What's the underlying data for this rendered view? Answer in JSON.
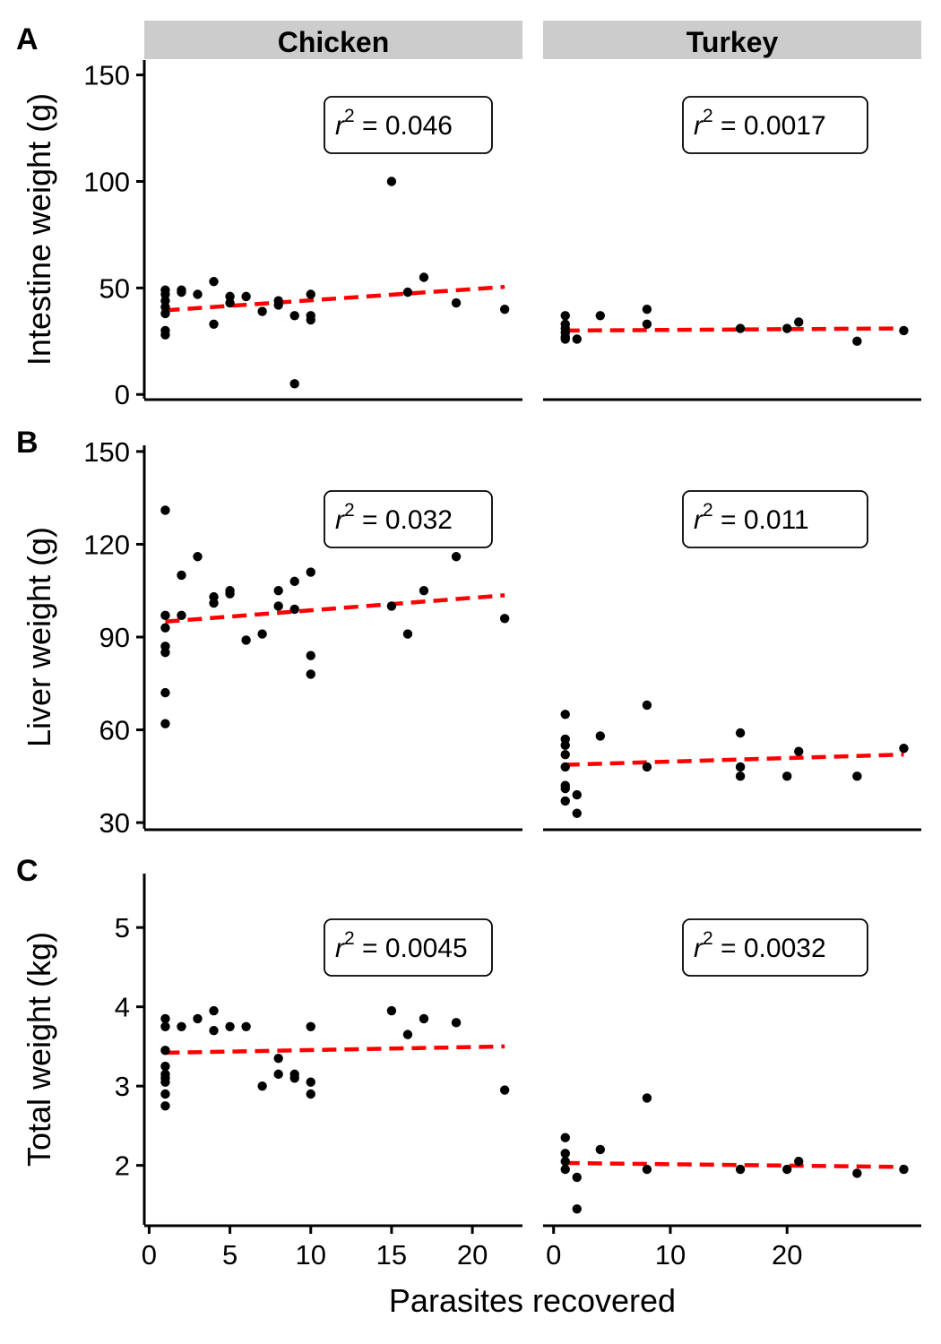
{
  "chart_data": {
    "type": "scatter",
    "xlabel": "Parasites recovered",
    "facets": [
      "Chicken",
      "Turkey"
    ],
    "x_ticks": {
      "Chicken": [
        0,
        5,
        10,
        15,
        20
      ],
      "Turkey": [
        0,
        10,
        20
      ]
    },
    "x_range": {
      "Chicken": [
        -0.3,
        23.1
      ],
      "Turkey": [
        -0.9,
        31.5
      ]
    },
    "fit_line_color": "#ff0000",
    "point_color": "#000000",
    "rows": [
      {
        "letter": "A",
        "ylabel": "Intestine weight (g)",
        "ylim": [
          -2,
          157
        ],
        "yticks": [
          0,
          50,
          100,
          150
        ],
        "panels": [
          {
            "facet": "Chicken",
            "r2_prefix": "r",
            "r2_exp": "2",
            "r2_value": " = 0.046",
            "fit": {
              "x": [
                1,
                22
              ],
              "y": [
                39.5,
                50.5
              ]
            },
            "points": [
              [
                1,
                49
              ],
              [
                1,
                47
              ],
              [
                1,
                44
              ],
              [
                1,
                41
              ],
              [
                1,
                38
              ],
              [
                1,
                30
              ],
              [
                1,
                28
              ],
              [
                2,
                49
              ],
              [
                2,
                48
              ],
              [
                3,
                47
              ],
              [
                4,
                53
              ],
              [
                4,
                33
              ],
              [
                5,
                46
              ],
              [
                5,
                43
              ],
              [
                6,
                46
              ],
              [
                7,
                39
              ],
              [
                8,
                44
              ],
              [
                8,
                42
              ],
              [
                9,
                37
              ],
              [
                9,
                5
              ],
              [
                10,
                47
              ],
              [
                10,
                37
              ],
              [
                10,
                35
              ],
              [
                15,
                100
              ],
              [
                16,
                48
              ],
              [
                17,
                55
              ],
              [
                19,
                43
              ],
              [
                22,
                40
              ]
            ]
          },
          {
            "facet": "Turkey",
            "r2_prefix": "r",
            "r2_exp": "2",
            "r2_value": " = 0.0017",
            "fit": {
              "x": [
                1,
                30
              ],
              "y": [
                30,
                31
              ]
            },
            "points": [
              [
                1,
                37
              ],
              [
                1,
                33
              ],
              [
                1,
                31
              ],
              [
                1,
                29
              ],
              [
                1,
                27
              ],
              [
                1,
                26
              ],
              [
                2,
                26
              ],
              [
                4,
                37
              ],
              [
                8,
                40
              ],
              [
                8,
                33
              ],
              [
                16,
                31
              ],
              [
                20,
                31
              ],
              [
                21,
                34
              ],
              [
                26,
                25
              ],
              [
                30,
                30
              ]
            ]
          }
        ]
      },
      {
        "letter": "B",
        "ylabel": "Liver weight (g)",
        "ylim": [
          28,
          152
        ],
        "yticks": [
          30,
          60,
          90,
          120,
          150
        ],
        "panels": [
          {
            "facet": "Chicken",
            "r2_prefix": "r",
            "r2_exp": "2",
            "r2_value": " = 0.032",
            "fit": {
              "x": [
                1,
                22
              ],
              "y": [
                95,
                103.5
              ]
            },
            "points": [
              [
                1,
                131
              ],
              [
                1,
                97
              ],
              [
                1,
                93
              ],
              [
                1,
                87
              ],
              [
                1,
                85
              ],
              [
                1,
                72
              ],
              [
                1,
                62
              ],
              [
                2,
                110
              ],
              [
                2,
                97
              ],
              [
                3,
                116
              ],
              [
                4,
                103
              ],
              [
                4,
                101
              ],
              [
                5,
                105
              ],
              [
                5,
                104
              ],
              [
                6,
                89
              ],
              [
                7,
                91
              ],
              [
                8,
                105
              ],
              [
                8,
                100
              ],
              [
                9,
                108
              ],
              [
                9,
                99
              ],
              [
                10,
                111
              ],
              [
                10,
                84
              ],
              [
                10,
                78
              ],
              [
                15,
                100
              ],
              [
                16,
                91
              ],
              [
                17,
                105
              ],
              [
                19,
                116
              ],
              [
                22,
                96
              ]
            ]
          },
          {
            "facet": "Turkey",
            "r2_prefix": "r",
            "r2_exp": "2",
            "r2_value": " = 0.011",
            "fit": {
              "x": [
                1,
                30
              ],
              "y": [
                48.7,
                52
              ]
            },
            "points": [
              [
                1,
                65
              ],
              [
                1,
                57
              ],
              [
                1,
                55
              ],
              [
                1,
                52
              ],
              [
                1,
                48
              ],
              [
                1,
                42
              ],
              [
                1,
                41
              ],
              [
                1,
                37
              ],
              [
                2,
                39
              ],
              [
                2,
                33
              ],
              [
                4,
                58
              ],
              [
                8,
                68
              ],
              [
                8,
                48
              ],
              [
                16,
                59
              ],
              [
                16,
                48
              ],
              [
                16,
                45
              ],
              [
                20,
                45
              ],
              [
                21,
                53
              ],
              [
                26,
                45
              ],
              [
                30,
                54
              ]
            ]
          }
        ]
      },
      {
        "letter": "C",
        "ylabel": "Total weight (kg)",
        "ylim": [
          1.25,
          5.68
        ],
        "yticks": [
          2,
          3,
          4,
          5
        ],
        "panels": [
          {
            "facet": "Chicken",
            "r2_prefix": "r",
            "r2_exp": "2",
            "r2_value": " = 0.0045",
            "fit": {
              "x": [
                1,
                22
              ],
              "y": [
                3.42,
                3.5
              ]
            },
            "points": [
              [
                1,
                3.85
              ],
              [
                1,
                3.75
              ],
              [
                1,
                3.45
              ],
              [
                1,
                3.25
              ],
              [
                1,
                3.15
              ],
              [
                1,
                3.1
              ],
              [
                1,
                3.05
              ],
              [
                1,
                2.9
              ],
              [
                1,
                2.75
              ],
              [
                2,
                3.75
              ],
              [
                3,
                3.85
              ],
              [
                4,
                3.95
              ],
              [
                4,
                3.7
              ],
              [
                5,
                3.75
              ],
              [
                6,
                3.75
              ],
              [
                7,
                3.0
              ],
              [
                8,
                3.35
              ],
              [
                8,
                3.15
              ],
              [
                9,
                3.15
              ],
              [
                9,
                3.1
              ],
              [
                10,
                3.75
              ],
              [
                10,
                3.05
              ],
              [
                10,
                2.9
              ],
              [
                15,
                3.95
              ],
              [
                16,
                3.65
              ],
              [
                17,
                3.85
              ],
              [
                19,
                3.8
              ],
              [
                22,
                2.95
              ]
            ]
          },
          {
            "facet": "Turkey",
            "r2_prefix": "r",
            "r2_exp": "2",
            "r2_value": " = 0.0032",
            "fit": {
              "x": [
                1,
                30
              ],
              "y": [
                2.03,
                1.98
              ]
            },
            "points": [
              [
                1,
                2.35
              ],
              [
                1,
                2.15
              ],
              [
                1,
                2.05
              ],
              [
                1,
                1.95
              ],
              [
                2,
                1.85
              ],
              [
                2,
                1.45
              ],
              [
                4,
                2.2
              ],
              [
                8,
                2.85
              ],
              [
                8,
                1.95
              ],
              [
                16,
                1.95
              ],
              [
                20,
                1.95
              ],
              [
                21,
                2.05
              ],
              [
                26,
                1.9
              ],
              [
                30,
                1.95
              ]
            ]
          }
        ]
      }
    ]
  }
}
